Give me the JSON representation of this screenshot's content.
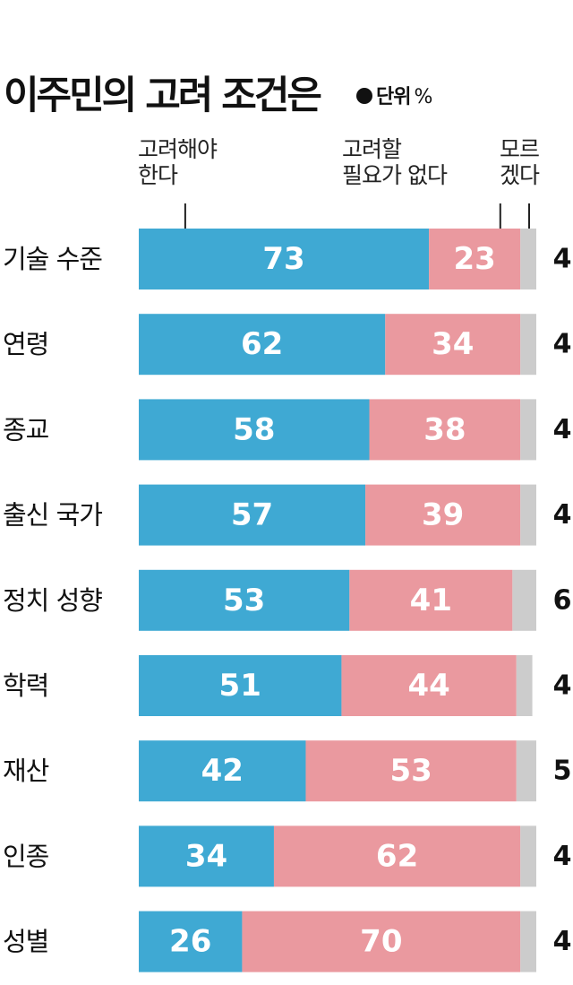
{
  "header": {
    "title": "이주민의 고려 조건은",
    "unit_label": "단위",
    "unit_symbol": "%"
  },
  "legend": {
    "consider_line1": "고려해야",
    "consider_line2": "한다",
    "not_consider_line1": "고려할",
    "not_consider_line2": "필요가 없다",
    "unknown_line1": "모르",
    "unknown_line2": "겠다"
  },
  "colors": {
    "consider": "#3fa9d3",
    "not_consider": "#ea999f",
    "unknown": "#cccccc",
    "text": "#111111"
  },
  "chart_data": {
    "type": "bar",
    "orientation": "horizontal",
    "stacked": true,
    "title": "이주민의 고려 조건은",
    "unit": "%",
    "categories": [
      "기술 수준",
      "연령",
      "종교",
      "출신 국가",
      "정치 성향",
      "학력",
      "재산",
      "인종",
      "성별"
    ],
    "series": [
      {
        "name": "고려해야 한다",
        "values": [
          73,
          62,
          58,
          57,
          53,
          51,
          42,
          34,
          26
        ]
      },
      {
        "name": "고려할 필요가 없다",
        "values": [
          23,
          34,
          38,
          39,
          41,
          44,
          53,
          62,
          70
        ]
      },
      {
        "name": "모르겠다",
        "values": [
          4,
          4,
          4,
          4,
          6,
          4,
          5,
          4,
          4
        ]
      }
    ],
    "xlim": [
      0,
      100
    ],
    "grid": false,
    "legend_position": "top"
  }
}
